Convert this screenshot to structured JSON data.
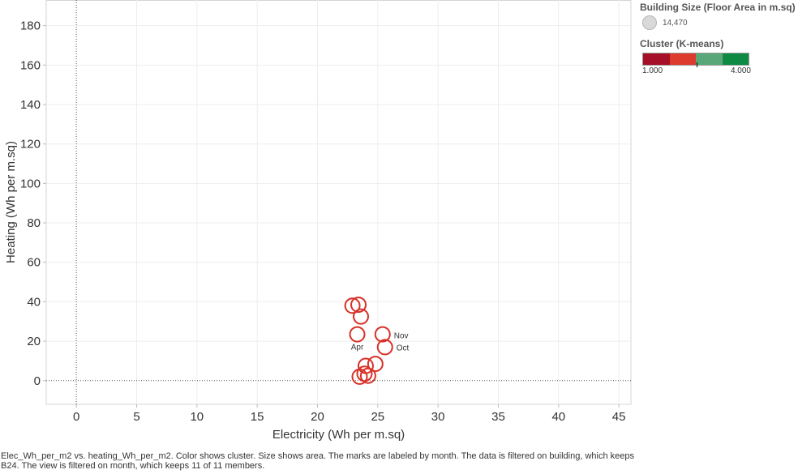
{
  "chart_data": {
    "type": "scatter",
    "xlabel": "Electricity (Wh per m.sq)",
    "ylabel": "Heating (Wh per m.sq)",
    "xlim": [
      -2.5,
      46
    ],
    "ylim": [
      -12,
      193
    ],
    "x_ticks": [
      0,
      5,
      10,
      15,
      20,
      25,
      30,
      35,
      40,
      45
    ],
    "y_ticks": [
      0,
      20,
      40,
      60,
      80,
      100,
      120,
      140,
      160,
      180
    ],
    "grid": true,
    "zero_lines": true,
    "point_color": "#d73027",
    "points": [
      {
        "x": 22.9,
        "y": 38.0,
        "label": ""
      },
      {
        "x": 23.4,
        "y": 38.5,
        "label": ""
      },
      {
        "x": 23.6,
        "y": 32.5,
        "label": ""
      },
      {
        "x": 23.3,
        "y": 23.5,
        "label": "Apr"
      },
      {
        "x": 25.4,
        "y": 23.5,
        "label": "Nov"
      },
      {
        "x": 25.6,
        "y": 17.0,
        "label": "Oct"
      },
      {
        "x": 24.0,
        "y": 7.5,
        "label": ""
      },
      {
        "x": 24.8,
        "y": 8.5,
        "label": ""
      },
      {
        "x": 23.5,
        "y": 2.0,
        "label": ""
      },
      {
        "x": 24.2,
        "y": 2.5,
        "label": ""
      },
      {
        "x": 23.9,
        "y": 3.5,
        "label": ""
      }
    ]
  },
  "legend": {
    "size_title": "Building Size (Floor Area in m.sq)",
    "size_value": "14,470",
    "color_title": "Cluster (K-means)",
    "color_min": "1.000",
    "color_max": "4.000",
    "ramp_colors": [
      "#a50f28",
      "#dd3b2e",
      "#5aa87a",
      "#0f8a43"
    ]
  },
  "caption": "Elec_Wh_per_m2 vs. heating_Wh_per_m2.  Color shows cluster.  Size shows area.  The marks are labeled by month. The data is filtered on building, which keeps B24. The view is filtered on month, which keeps 11 of 11 members."
}
